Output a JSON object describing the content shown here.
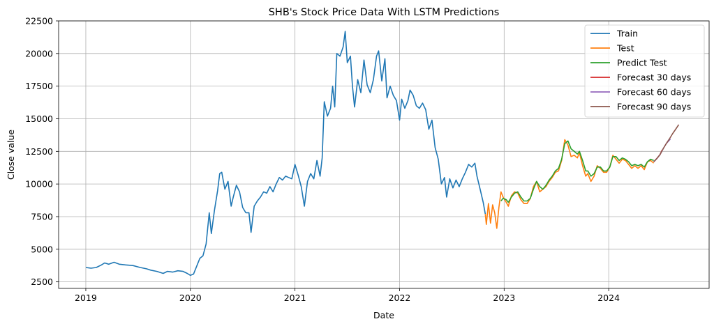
{
  "chart_data": {
    "type": "line",
    "title": "SHB's Stock Price Data With LSTM Predictions",
    "xlabel": "Date",
    "ylabel": "Close value",
    "xlim": [
      2018.74,
      2024.96
    ],
    "ylim": [
      2000,
      22500
    ],
    "x_ticks": [
      2019,
      2020,
      2021,
      2022,
      2023,
      2024
    ],
    "y_ticks": [
      2500,
      5000,
      7500,
      10000,
      12500,
      15000,
      17500,
      20000,
      22500
    ],
    "grid": true,
    "legend_position": "top-right",
    "series": [
      {
        "name": "Train",
        "color": "#1f77b4",
        "points": [
          [
            2019.0,
            3600
          ],
          [
            2019.05,
            3550
          ],
          [
            2019.1,
            3600
          ],
          [
            2019.15,
            3800
          ],
          [
            2019.18,
            3950
          ],
          [
            2019.22,
            3850
          ],
          [
            2019.27,
            4000
          ],
          [
            2019.32,
            3850
          ],
          [
            2019.38,
            3800
          ],
          [
            2019.45,
            3750
          ],
          [
            2019.52,
            3600
          ],
          [
            2019.58,
            3500
          ],
          [
            2019.62,
            3400
          ],
          [
            2019.68,
            3300
          ],
          [
            2019.74,
            3150
          ],
          [
            2019.78,
            3300
          ],
          [
            2019.83,
            3250
          ],
          [
            2019.88,
            3350
          ],
          [
            2019.93,
            3300
          ],
          [
            2019.97,
            3150
          ],
          [
            2020.0,
            3000
          ],
          [
            2020.03,
            3100
          ],
          [
            2020.06,
            3700
          ],
          [
            2020.09,
            4300
          ],
          [
            2020.12,
            4500
          ],
          [
            2020.15,
            5400
          ],
          [
            2020.18,
            7800
          ],
          [
            2020.2,
            6200
          ],
          [
            2020.23,
            8000
          ],
          [
            2020.26,
            9500
          ],
          [
            2020.28,
            10800
          ],
          [
            2020.3,
            10900
          ],
          [
            2020.33,
            9600
          ],
          [
            2020.36,
            10200
          ],
          [
            2020.39,
            8300
          ],
          [
            2020.41,
            9000
          ],
          [
            2020.44,
            9900
          ],
          [
            2020.47,
            9400
          ],
          [
            2020.5,
            8200
          ],
          [
            2020.53,
            7800
          ],
          [
            2020.56,
            7800
          ],
          [
            2020.58,
            6300
          ],
          [
            2020.61,
            8300
          ],
          [
            2020.64,
            8700
          ],
          [
            2020.67,
            9000
          ],
          [
            2020.7,
            9400
          ],
          [
            2020.73,
            9300
          ],
          [
            2020.76,
            9800
          ],
          [
            2020.79,
            9400
          ],
          [
            2020.82,
            10000
          ],
          [
            2020.85,
            10500
          ],
          [
            2020.88,
            10300
          ],
          [
            2020.91,
            10600
          ],
          [
            2020.94,
            10500
          ],
          [
            2020.97,
            10400
          ],
          [
            2021.0,
            11500
          ],
          [
            2021.03,
            10700
          ],
          [
            2021.06,
            9800
          ],
          [
            2021.09,
            8300
          ],
          [
            2021.12,
            10200
          ],
          [
            2021.15,
            10800
          ],
          [
            2021.18,
            10400
          ],
          [
            2021.21,
            11800
          ],
          [
            2021.24,
            10600
          ],
          [
            2021.26,
            12000
          ],
          [
            2021.28,
            16300
          ],
          [
            2021.31,
            15200
          ],
          [
            2021.34,
            15800
          ],
          [
            2021.36,
            17500
          ],
          [
            2021.38,
            15900
          ],
          [
            2021.4,
            20000
          ],
          [
            2021.43,
            19800
          ],
          [
            2021.46,
            20500
          ],
          [
            2021.48,
            21700
          ],
          [
            2021.5,
            19300
          ],
          [
            2021.53,
            19800
          ],
          [
            2021.55,
            17500
          ],
          [
            2021.57,
            15900
          ],
          [
            2021.6,
            18000
          ],
          [
            2021.63,
            17000
          ],
          [
            2021.66,
            19500
          ],
          [
            2021.69,
            17600
          ],
          [
            2021.72,
            17000
          ],
          [
            2021.75,
            18000
          ],
          [
            2021.78,
            19800
          ],
          [
            2021.8,
            20200
          ],
          [
            2021.83,
            17900
          ],
          [
            2021.86,
            19600
          ],
          [
            2021.88,
            16600
          ],
          [
            2021.91,
            17500
          ],
          [
            2021.94,
            16800
          ],
          [
            2021.97,
            16400
          ],
          [
            2022.0,
            14900
          ],
          [
            2022.02,
            16500
          ],
          [
            2022.05,
            15800
          ],
          [
            2022.08,
            16400
          ],
          [
            2022.1,
            17200
          ],
          [
            2022.13,
            16800
          ],
          [
            2022.16,
            16000
          ],
          [
            2022.19,
            15800
          ],
          [
            2022.22,
            16200
          ],
          [
            2022.25,
            15700
          ],
          [
            2022.28,
            14200
          ],
          [
            2022.31,
            14900
          ],
          [
            2022.34,
            12800
          ],
          [
            2022.37,
            11900
          ],
          [
            2022.4,
            10000
          ],
          [
            2022.43,
            10500
          ],
          [
            2022.45,
            9000
          ],
          [
            2022.48,
            10400
          ],
          [
            2022.51,
            9700
          ],
          [
            2022.54,
            10300
          ],
          [
            2022.57,
            9800
          ],
          [
            2022.6,
            10400
          ],
          [
            2022.63,
            10900
          ],
          [
            2022.66,
            11500
          ],
          [
            2022.69,
            11300
          ],
          [
            2022.72,
            11600
          ],
          [
            2022.74,
            10600
          ],
          [
            2022.77,
            9600
          ],
          [
            2022.8,
            8600
          ],
          [
            2022.82,
            7700
          ]
        ]
      },
      {
        "name": "Test",
        "color": "#ff7f0e",
        "points": [
          [
            2022.82,
            7700
          ],
          [
            2022.83,
            6900
          ],
          [
            2022.85,
            8500
          ],
          [
            2022.87,
            7000
          ],
          [
            2022.89,
            8400
          ],
          [
            2022.91,
            7800
          ],
          [
            2022.93,
            6600
          ],
          [
            2022.95,
            8200
          ],
          [
            2022.97,
            9400
          ],
          [
            2022.99,
            9000
          ],
          [
            2023.02,
            8600
          ],
          [
            2023.04,
            8300
          ],
          [
            2023.07,
            9100
          ],
          [
            2023.1,
            9400
          ],
          [
            2023.13,
            9300
          ],
          [
            2023.16,
            8800
          ],
          [
            2023.19,
            8500
          ],
          [
            2023.22,
            8500
          ],
          [
            2023.25,
            8900
          ],
          [
            2023.28,
            9800
          ],
          [
            2023.31,
            10200
          ],
          [
            2023.34,
            9400
          ],
          [
            2023.37,
            9600
          ],
          [
            2023.4,
            9800
          ],
          [
            2023.43,
            10200
          ],
          [
            2023.46,
            10500
          ],
          [
            2023.49,
            10900
          ],
          [
            2023.52,
            11000
          ],
          [
            2023.55,
            11800
          ],
          [
            2023.58,
            13400
          ],
          [
            2023.61,
            13000
          ],
          [
            2023.64,
            12100
          ],
          [
            2023.67,
            12200
          ],
          [
            2023.7,
            12000
          ],
          [
            2023.72,
            12400
          ],
          [
            2023.75,
            11400
          ],
          [
            2023.78,
            10600
          ],
          [
            2023.8,
            10800
          ],
          [
            2023.83,
            10200
          ],
          [
            2023.86,
            10600
          ],
          [
            2023.89,
            11400
          ],
          [
            2023.92,
            11200
          ],
          [
            2023.95,
            10900
          ],
          [
            2023.98,
            10900
          ],
          [
            2024.01,
            11300
          ],
          [
            2024.04,
            12200
          ],
          [
            2024.07,
            11900
          ],
          [
            2024.1,
            11600
          ],
          [
            2024.13,
            11900
          ],
          [
            2024.16,
            11800
          ],
          [
            2024.19,
            11500
          ],
          [
            2024.22,
            11200
          ],
          [
            2024.25,
            11400
          ],
          [
            2024.28,
            11200
          ],
          [
            2024.31,
            11400
          ],
          [
            2024.34,
            11100
          ],
          [
            2024.37,
            11700
          ],
          [
            2024.4,
            11800
          ],
          [
            2024.43,
            11600
          ]
        ]
      },
      {
        "name": "Predict Test",
        "color": "#2ca02c",
        "points": [
          [
            2022.97,
            8700
          ],
          [
            2022.99,
            8900
          ],
          [
            2023.02,
            8800
          ],
          [
            2023.04,
            8600
          ],
          [
            2023.07,
            9000
          ],
          [
            2023.1,
            9300
          ],
          [
            2023.13,
            9400
          ],
          [
            2023.16,
            9000
          ],
          [
            2023.19,
            8700
          ],
          [
            2023.22,
            8700
          ],
          [
            2023.25,
            8900
          ],
          [
            2023.28,
            9600
          ],
          [
            2023.31,
            10200
          ],
          [
            2023.34,
            9800
          ],
          [
            2023.37,
            9600
          ],
          [
            2023.4,
            9900
          ],
          [
            2023.43,
            10300
          ],
          [
            2023.46,
            10600
          ],
          [
            2023.49,
            11000
          ],
          [
            2023.52,
            11200
          ],
          [
            2023.55,
            11900
          ],
          [
            2023.58,
            13100
          ],
          [
            2023.61,
            13300
          ],
          [
            2023.64,
            12700
          ],
          [
            2023.67,
            12500
          ],
          [
            2023.7,
            12300
          ],
          [
            2023.72,
            12500
          ],
          [
            2023.75,
            11800
          ],
          [
            2023.78,
            11000
          ],
          [
            2023.8,
            11000
          ],
          [
            2023.83,
            10600
          ],
          [
            2023.86,
            10800
          ],
          [
            2023.89,
            11300
          ],
          [
            2023.92,
            11300
          ],
          [
            2023.95,
            11000
          ],
          [
            2023.98,
            11000
          ],
          [
            2024.01,
            11300
          ],
          [
            2024.04,
            12100
          ],
          [
            2024.07,
            12100
          ],
          [
            2024.1,
            11800
          ],
          [
            2024.13,
            12000
          ],
          [
            2024.16,
            11900
          ],
          [
            2024.19,
            11700
          ],
          [
            2024.22,
            11400
          ],
          [
            2024.25,
            11500
          ],
          [
            2024.28,
            11400
          ],
          [
            2024.31,
            11500
          ],
          [
            2024.34,
            11300
          ],
          [
            2024.37,
            11700
          ],
          [
            2024.4,
            11900
          ],
          [
            2024.43,
            11800
          ]
        ]
      },
      {
        "name": "Forecast 30 days",
        "color": "#d62728",
        "points": [
          [
            2024.43,
            11700
          ],
          [
            2024.46,
            11950
          ],
          [
            2024.49,
            12250
          ],
          [
            2024.51,
            12600
          ]
        ]
      },
      {
        "name": "Forecast 60 days",
        "color": "#9467bd",
        "points": [
          [
            2024.43,
            11700
          ],
          [
            2024.46,
            11950
          ],
          [
            2024.49,
            12250
          ],
          [
            2024.52,
            12700
          ],
          [
            2024.55,
            13100
          ],
          [
            2024.59,
            13450
          ]
        ]
      },
      {
        "name": "Forecast 90 days",
        "color": "#8c564b",
        "points": [
          [
            2024.43,
            11700
          ],
          [
            2024.46,
            11950
          ],
          [
            2024.49,
            12250
          ],
          [
            2024.52,
            12700
          ],
          [
            2024.55,
            13100
          ],
          [
            2024.58,
            13450
          ],
          [
            2024.61,
            13850
          ],
          [
            2024.64,
            14200
          ],
          [
            2024.67,
            14550
          ]
        ]
      }
    ]
  }
}
